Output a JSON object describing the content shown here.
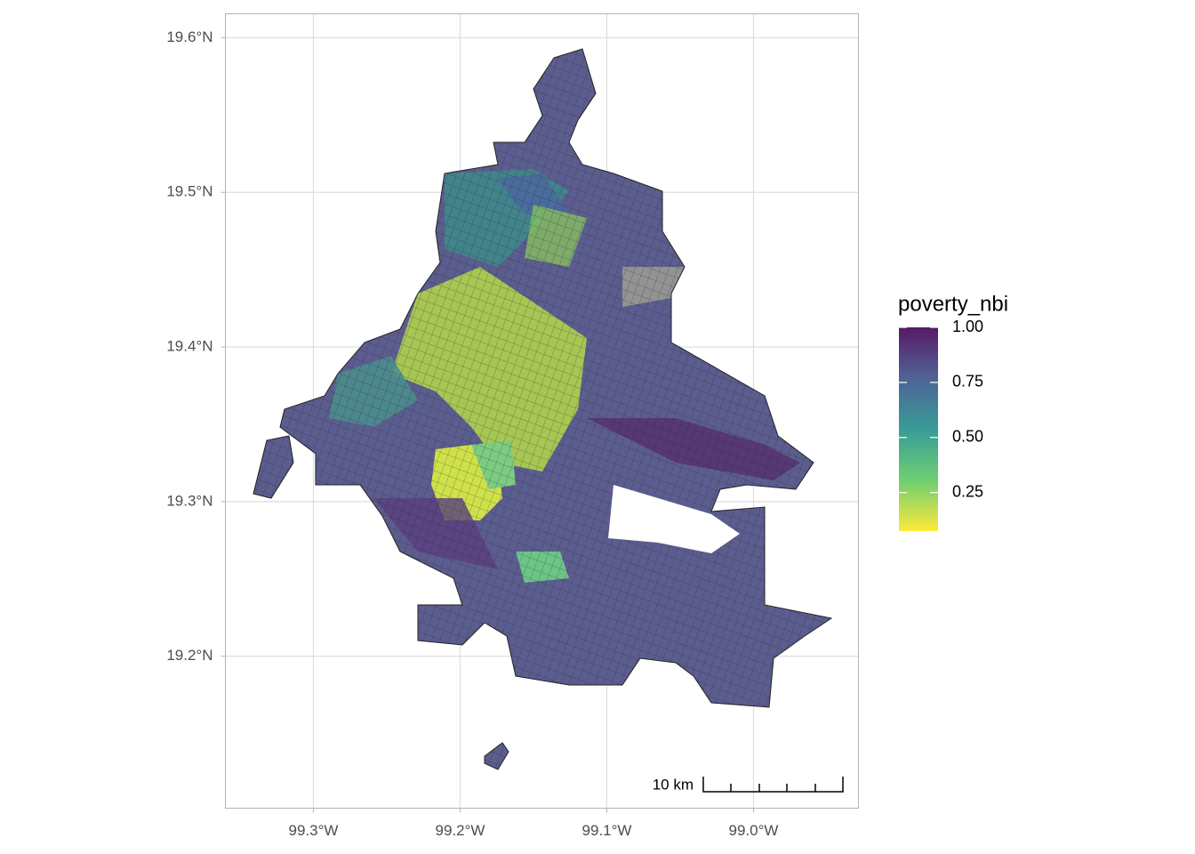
{
  "chart_data": {
    "type": "choropleth",
    "xlim": [
      -99.36,
      -98.9285
    ],
    "ylim": [
      19.1017,
      19.6155
    ],
    "xticks": [
      {
        "value": -99.3,
        "label": "99.3°W"
      },
      {
        "value": -99.2,
        "label": "99.2°W"
      },
      {
        "value": -99.1,
        "label": "99.1°W"
      },
      {
        "value": -99.0,
        "label": "99.0°W"
      }
    ],
    "yticks": [
      {
        "value": 19.2,
        "label": "19.2°N"
      },
      {
        "value": 19.3,
        "label": "19.3°N"
      },
      {
        "value": 19.4,
        "label": "19.4°N"
      },
      {
        "value": 19.5,
        "label": "19.5°N"
      },
      {
        "value": 19.6,
        "label": "19.6°N"
      }
    ],
    "grid": true,
    "legend": {
      "title": "poverty_nbi",
      "lim": [
        0.075,
        1.0
      ],
      "ticks": [
        0.25,
        {
          "value": 0.5,
          "label": "0.50"
        },
        0.75,
        {
          "value": 1.0,
          "label": "1.00"
        }
      ],
      "colors": [
        "#fde725",
        "#5ec962",
        "#21918c",
        "#3b528b",
        "#440154"
      ]
    },
    "scale_bar": "10 km"
  }
}
